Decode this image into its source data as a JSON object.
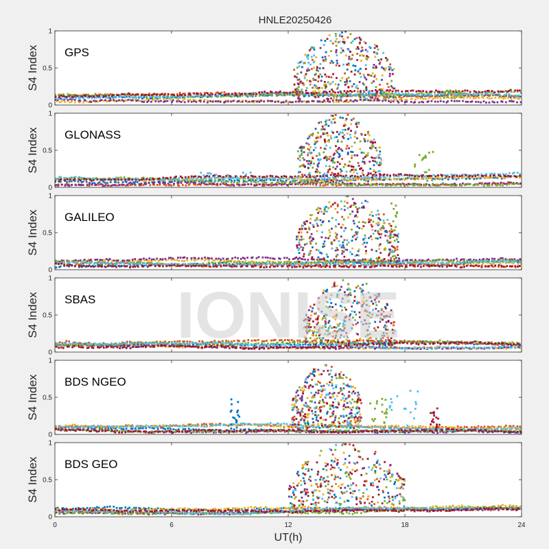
{
  "chart_data": {
    "type": "scatter",
    "title": "HNLE20250426",
    "xlabel": "UT(h)",
    "ylabel": "S4 Index",
    "xlim": [
      0,
      24
    ],
    "ylim": [
      0,
      1
    ],
    "xticks": [
      0,
      6,
      12,
      18,
      24
    ],
    "xtick_labels": [
      "0",
      "6",
      "12",
      "18",
      "24"
    ],
    "yticks": [
      0,
      0.5,
      1
    ],
    "ytick_labels": [
      "0",
      "0.5",
      "1"
    ],
    "watermark": "IONISE",
    "colors": [
      "#0072BD",
      "#D95319",
      "#EDB120",
      "#7E2F8E",
      "#77AC30",
      "#4DBEEE",
      "#A2142F"
    ],
    "panels": [
      {
        "label": "GPS",
        "series_count": 7,
        "baseline_range": [
          0.04,
          0.2
        ],
        "active_window": [
          12.3,
          17.5
        ],
        "active_peak": 1.0,
        "minor_events": [
          {
            "x": [
              20,
              21
            ],
            "peak": 0.2
          }
        ]
      },
      {
        "label": "GLONASS",
        "series_count": 7,
        "baseline_range": [
          0.03,
          0.2
        ],
        "active_window": [
          12.5,
          16.8
        ],
        "active_peak": 1.0,
        "minor_events": [
          {
            "x": [
              18.5,
              19.5
            ],
            "peak": 0.48
          },
          {
            "x": [
              7.5,
              10.5
            ],
            "peak": 0.2
          }
        ]
      },
      {
        "label": "GALILEO",
        "series_count": 7,
        "baseline_range": [
          0.04,
          0.18
        ],
        "active_window": [
          12.4,
          17.7
        ],
        "active_peak": 1.0,
        "minor_events": [
          {
            "x": [
              17.3,
              17.7
            ],
            "peak": 0.9
          }
        ]
      },
      {
        "label": "SBAS",
        "series_count": 7,
        "baseline_range": [
          0.05,
          0.22
        ],
        "active_window": [
          12.8,
          17.5
        ],
        "active_peak": 1.0,
        "minor_events": []
      },
      {
        "label": "BDS NGEO",
        "series_count": 7,
        "baseline_range": [
          0.03,
          0.18
        ],
        "active_window": [
          12.2,
          15.8
        ],
        "active_peak": 0.95,
        "minor_events": [
          {
            "x": [
              16.2,
              17.2
            ],
            "peak": 0.55
          },
          {
            "x": [
              17.2,
              18.8
            ],
            "peak": 0.6
          },
          {
            "x": [
              19.3,
              19.8
            ],
            "peak": 0.38
          },
          {
            "x": [
              9,
              9.5
            ],
            "peak": 0.48
          }
        ]
      },
      {
        "label": "BDS GEO",
        "series_count": 7,
        "baseline_range": [
          0.04,
          0.16
        ],
        "active_window": [
          12.0,
          18.0
        ],
        "active_peak": 1.0,
        "minor_events": []
      }
    ]
  }
}
